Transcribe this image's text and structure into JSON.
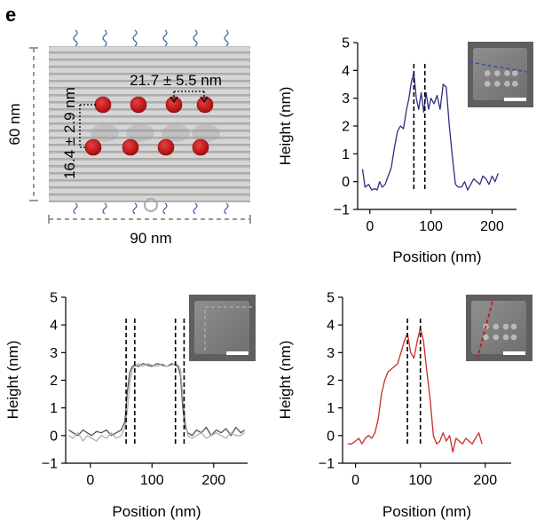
{
  "panel_label": "e",
  "schematic": {
    "height_label": "60 nm",
    "width_label": "90 nm",
    "horizontal_spacing": "21.7 ± 5.5 nm",
    "vertical_spacing": "16.4 ± 2.9 nm"
  },
  "chart_data": [
    {
      "id": "top-right",
      "type": "line",
      "xlabel": "Position (nm)",
      "ylabel": "Height (nm)",
      "xlim": [
        -20,
        240
      ],
      "ylim": [
        -1,
        5
      ],
      "xticks": [
        0,
        100,
        200
      ],
      "yticks": [
        -1,
        0,
        1,
        2,
        3,
        4,
        5
      ],
      "vlines": [
        72,
        90
      ],
      "inset_line": "horizontal",
      "series": [
        {
          "color": "#2e2e86",
          "x": [
            -12,
            -8,
            -2,
            3,
            8,
            12,
            16,
            20,
            25,
            30,
            35,
            40,
            45,
            50,
            55,
            60,
            64,
            68,
            72,
            76,
            80,
            84,
            88,
            92,
            96,
            100,
            105,
            110,
            115,
            120,
            125,
            130,
            135,
            140,
            145,
            150,
            155,
            160,
            165,
            170,
            175,
            180,
            185,
            190,
            195,
            200,
            205,
            210
          ],
          "y": [
            0.45,
            -0.2,
            -0.1,
            -0.3,
            -0.25,
            -0.3,
            0.0,
            -0.2,
            -0.1,
            0.2,
            0.5,
            1.2,
            1.8,
            2.0,
            1.9,
            2.6,
            3.0,
            3.6,
            3.9,
            3.0,
            2.6,
            3.2,
            2.5,
            3.2,
            2.6,
            3.0,
            2.8,
            3.1,
            2.6,
            3.5,
            3.4,
            2.0,
            0.9,
            -0.1,
            -0.2,
            -0.2,
            0.0,
            -0.3,
            -0.1,
            0.1,
            0.0,
            -0.1,
            0.2,
            0.1,
            -0.1,
            0.2,
            0.0,
            0.3
          ]
        }
      ]
    },
    {
      "id": "bottom-left",
      "type": "line",
      "xlabel": "Position (nm)",
      "ylabel": "Height (nm)",
      "xlim": [
        -40,
        255
      ],
      "ylim": [
        -1,
        5
      ],
      "xticks": [
        0,
        100,
        200
      ],
      "yticks": [
        -1,
        0,
        1,
        2,
        3,
        4,
        5
      ],
      "vlines": [
        58,
        72,
        138,
        152
      ],
      "inset_line": "corner",
      "series": [
        {
          "color": "#555555",
          "x": [
            -35,
            -28,
            -20,
            -12,
            -5,
            2,
            10,
            18,
            26,
            34,
            42,
            50,
            56,
            60,
            64,
            68,
            72,
            78,
            85,
            92,
            100,
            108,
            116,
            124,
            132,
            138,
            142,
            146,
            150,
            154,
            158,
            165,
            172,
            180,
            188,
            196,
            204,
            212,
            220,
            228,
            236,
            244,
            250
          ],
          "y": [
            0.2,
            0.1,
            0.0,
            0.2,
            0.1,
            0.0,
            0.15,
            0.1,
            0.2,
            0.0,
            0.1,
            0.2,
            0.5,
            1.6,
            2.3,
            2.5,
            2.55,
            2.5,
            2.6,
            2.55,
            2.5,
            2.6,
            2.55,
            2.5,
            2.6,
            2.55,
            2.5,
            2.2,
            1.0,
            0.3,
            0.1,
            0.0,
            0.2,
            0.1,
            0.3,
            0.0,
            0.2,
            0.1,
            0.25,
            0.0,
            0.3,
            0.1,
            0.2
          ]
        },
        {
          "color": "#b0b0b0",
          "x": [
            -35,
            -28,
            -20,
            -12,
            -5,
            2,
            10,
            18,
            26,
            34,
            42,
            50,
            56,
            60,
            64,
            68,
            72,
            78,
            85,
            92,
            100,
            108,
            116,
            124,
            132,
            138,
            142,
            146,
            150,
            154,
            158,
            165,
            172,
            180,
            188,
            196,
            204,
            212,
            220,
            228,
            236,
            244,
            250
          ],
          "y": [
            0.0,
            -0.1,
            0.1,
            -0.2,
            0.0,
            -0.1,
            -0.2,
            0.0,
            -0.1,
            0.1,
            -0.1,
            0.0,
            0.3,
            0.9,
            1.9,
            2.4,
            2.5,
            2.6,
            2.5,
            2.6,
            2.55,
            2.5,
            2.6,
            2.5,
            2.55,
            2.6,
            2.55,
            2.4,
            1.4,
            0.5,
            0.0,
            -0.1,
            0.0,
            0.1,
            -0.1,
            0.0,
            0.1,
            0.0,
            -0.1,
            0.1,
            0.0,
            0.0,
            0.1
          ]
        }
      ]
    },
    {
      "id": "bottom-right",
      "type": "line",
      "xlabel": "Position (nm)",
      "ylabel": "Height (nm)",
      "xlim": [
        -20,
        240
      ],
      "ylim": [
        -1,
        5
      ],
      "xticks": [
        0,
        100,
        200
      ],
      "yticks": [
        -1,
        0,
        1,
        2,
        3,
        4,
        5
      ],
      "vlines": [
        80,
        100
      ],
      "inset_line": "diagonal",
      "series": [
        {
          "color": "#cc2a2a",
          "x": [
            -12,
            -6,
            0,
            5,
            10,
            15,
            20,
            25,
            30,
            35,
            40,
            45,
            50,
            55,
            60,
            65,
            70,
            75,
            80,
            85,
            90,
            95,
            100,
            105,
            110,
            115,
            120,
            125,
            130,
            135,
            140,
            145,
            150,
            155,
            160,
            165,
            170,
            175,
            180,
            185,
            190,
            195
          ],
          "y": [
            -0.3,
            -0.3,
            -0.2,
            -0.1,
            -0.3,
            -0.1,
            0.0,
            -0.1,
            0.1,
            0.6,
            1.5,
            2.0,
            2.3,
            2.4,
            2.5,
            2.6,
            3.0,
            3.4,
            3.7,
            3.0,
            2.8,
            3.4,
            3.9,
            3.4,
            2.3,
            1.3,
            0.0,
            -0.3,
            -0.2,
            0.1,
            -0.2,
            0.0,
            -0.6,
            -0.1,
            -0.2,
            -0.3,
            -0.1,
            -0.2,
            -0.3,
            -0.1,
            0.1,
            -0.3
          ]
        }
      ]
    }
  ]
}
